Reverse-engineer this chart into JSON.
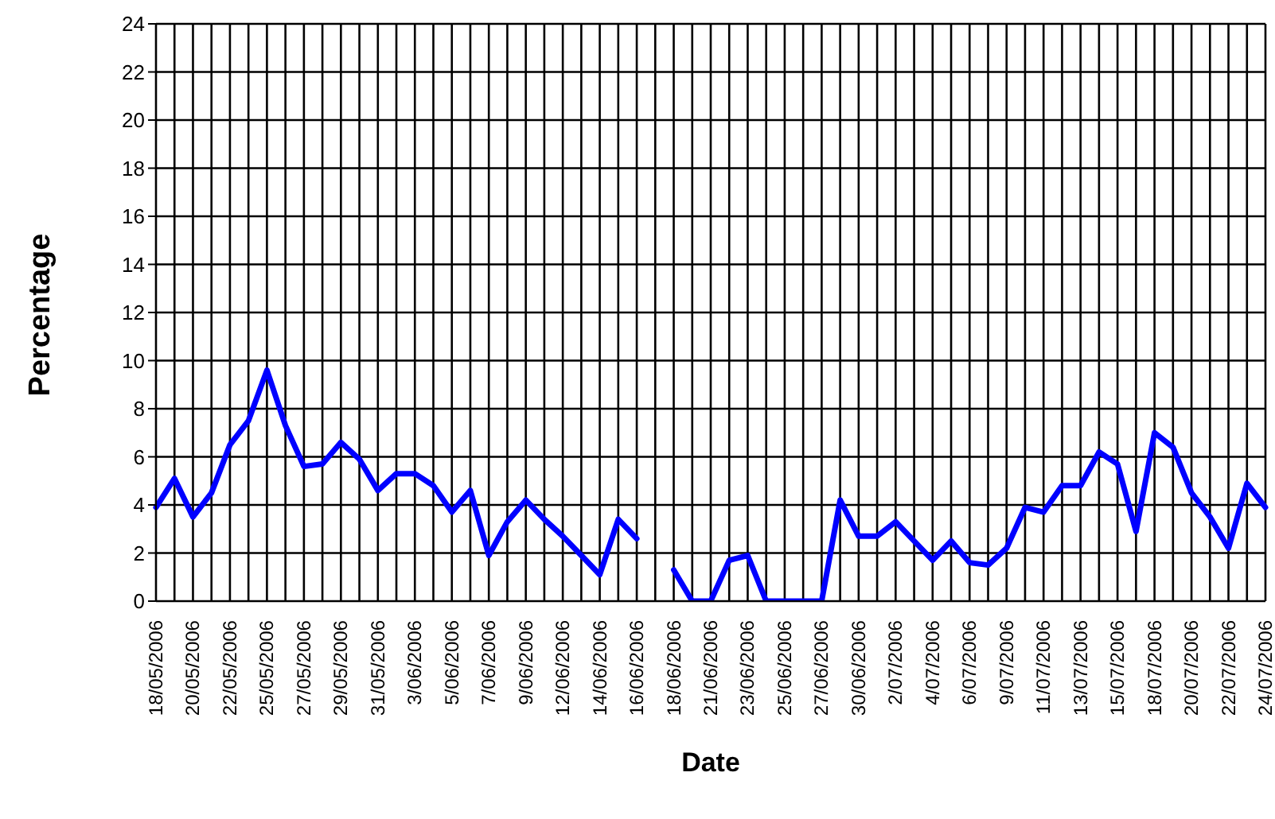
{
  "chart_data": {
    "type": "line",
    "xlabel": "Date",
    "ylabel": "Percentage",
    "categories": [
      "18/05/2006",
      null,
      "20/05/2006",
      null,
      "22/05/2006",
      null,
      "25/05/2006",
      null,
      "27/05/2006",
      null,
      "29/05/2006",
      null,
      "31/05/2006",
      null,
      "3/06/2006",
      null,
      "5/06/2006",
      null,
      "7/06/2006",
      null,
      "9/06/2006",
      null,
      "12/06/2006",
      null,
      "14/06/2006",
      null,
      "16/06/2006",
      null,
      "18/06/2006",
      null,
      "21/06/2006",
      null,
      "23/06/2006",
      null,
      "25/06/2006",
      null,
      "27/06/2006",
      null,
      "30/06/2006",
      null,
      "2/07/2006",
      null,
      "4/07/2006",
      null,
      "6/07/2006",
      null,
      "9/07/2006",
      null,
      "11/07/2006",
      null,
      "13/07/2006",
      null,
      "15/07/2006",
      null,
      "18/07/2006",
      null,
      "20/07/2006",
      null,
      "22/07/2006",
      null,
      "24/07/2006"
    ],
    "series": [
      {
        "color": "#0000ff",
        "values": [
          3.9,
          5.1,
          3.5,
          4.5,
          6.5,
          7.5,
          9.6,
          7.3,
          5.6,
          5.7,
          6.6,
          5.9,
          4.6,
          5.3,
          5.3,
          4.8,
          3.7,
          4.6,
          1.9,
          3.3,
          4.2,
          3.4,
          2.7,
          1.9,
          1.1,
          3.4,
          2.6,
          null,
          1.3,
          0,
          0,
          1.7,
          1.9,
          0,
          0,
          0,
          0,
          4.2,
          2.7,
          2.7,
          3.3,
          2.5,
          1.7,
          2.5,
          1.6,
          1.5,
          2.2,
          3.9,
          3.7,
          4.8,
          4.8,
          6.2,
          5.7,
          2.9,
          7.0,
          6.4,
          4.5,
          3.5,
          2.2,
          4.9,
          3.9
        ]
      }
    ],
    "ylim": [
      0,
      24
    ],
    "yticks": [
      0,
      2,
      4,
      6,
      8,
      10,
      12,
      14,
      16,
      18,
      20,
      22,
      24
    ],
    "grid": true,
    "legend": false,
    "marker": "none",
    "line_style": "solid"
  }
}
